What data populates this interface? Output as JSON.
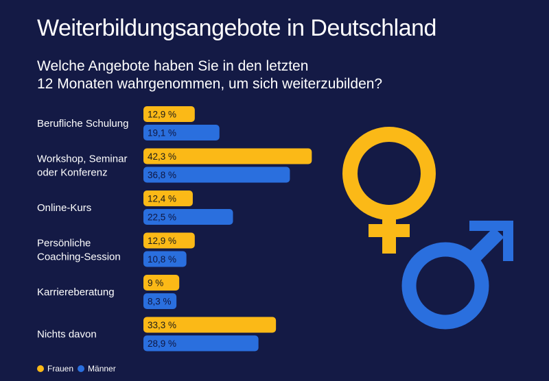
{
  "title": "Weiterbildungsangebote in Deutschland",
  "subtitle_line1": "Welche Angebote haben Sie in den letzten",
  "subtitle_line2": "12 Monaten wahrgenommen, um sich weiterzubilden?",
  "colors": {
    "background": "#141a45",
    "frauen": "#fbb917",
    "maenner": "#2a6fde"
  },
  "legend": {
    "frauen": "Frauen",
    "maenner": "Männer"
  },
  "icons": [
    "female-symbol-icon",
    "male-symbol-icon"
  ],
  "chart_data": {
    "type": "bar",
    "orientation": "horizontal",
    "categories": [
      [
        "Berufliche Schulung"
      ],
      [
        "Workshop, Seminar",
        "oder Konferenz"
      ],
      [
        "Online-Kurs"
      ],
      [
        "Persönliche",
        "Coaching-Session"
      ],
      [
        "Karriereberatung"
      ],
      [
        "Nichts davon"
      ]
    ],
    "series": [
      {
        "name": "Frauen",
        "values": [
          12.9,
          42.3,
          12.4,
          12.9,
          9,
          33.3
        ],
        "labels": [
          "12,9 %",
          "42,3 %",
          "12,4 %",
          "12,9 %",
          "9 %",
          "33,3 %"
        ]
      },
      {
        "name": "Männer",
        "values": [
          19.1,
          36.8,
          22.5,
          10.8,
          8.3,
          28.9
        ],
        "labels": [
          "19,1 %",
          "36,8 %",
          "22,5 %",
          "10,8 %",
          "8,3 %",
          "28,9 %"
        ]
      }
    ],
    "legend_position": "bottom-left",
    "grid": false
  }
}
